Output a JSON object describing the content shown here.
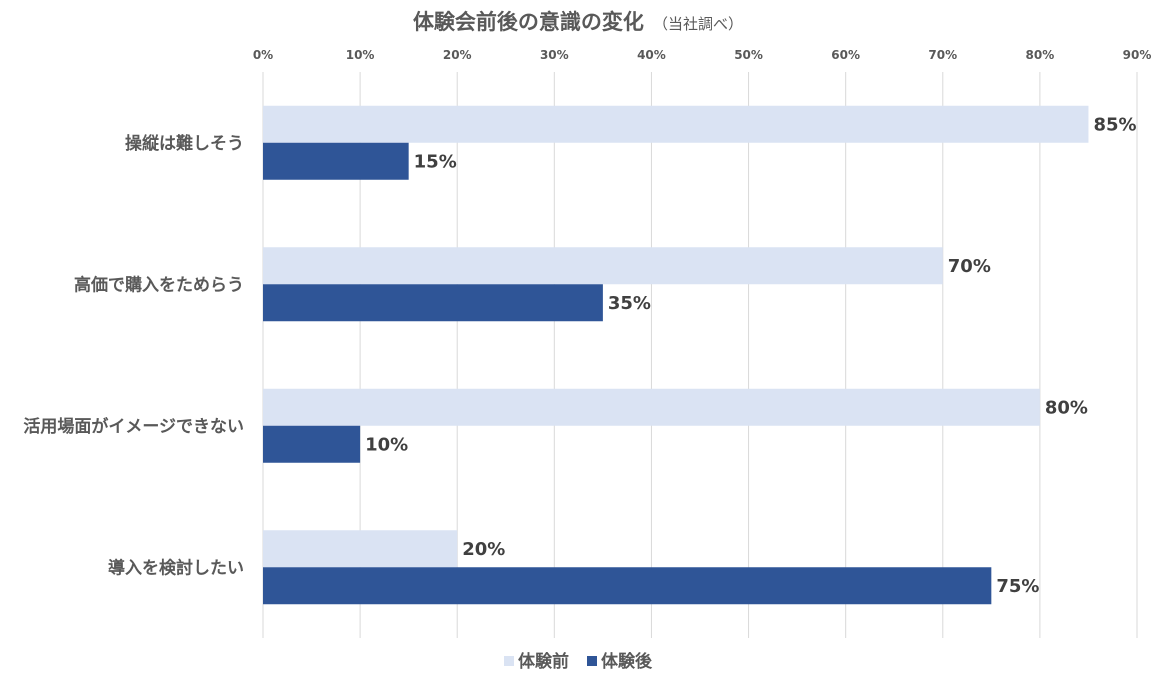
{
  "chart_data": {
    "type": "bar",
    "orientation": "horizontal",
    "title": "体験会前後の意識の変化",
    "subtitle": "（当社調べ）",
    "categories": [
      "操縦は難しそう",
      "高価で購入をためらう",
      "活用場面がイメージできない",
      "導入を検討したい"
    ],
    "series": [
      {
        "name": "体験前",
        "values": [
          85,
          70,
          80,
          20
        ],
        "color": "#dae3f3"
      },
      {
        "name": "体験後",
        "values": [
          15,
          35,
          10,
          75
        ],
        "color": "#2f5597"
      }
    ],
    "value_suffix": "%",
    "x_ticks": [
      "0%",
      "10%",
      "20%",
      "30%",
      "40%",
      "50%",
      "60%",
      "70%",
      "80%",
      "90%"
    ],
    "xlim": [
      0,
      90
    ],
    "x_tick_step": 10,
    "x_axis_position": "top",
    "grid": true,
    "legend_position": "bottom"
  }
}
